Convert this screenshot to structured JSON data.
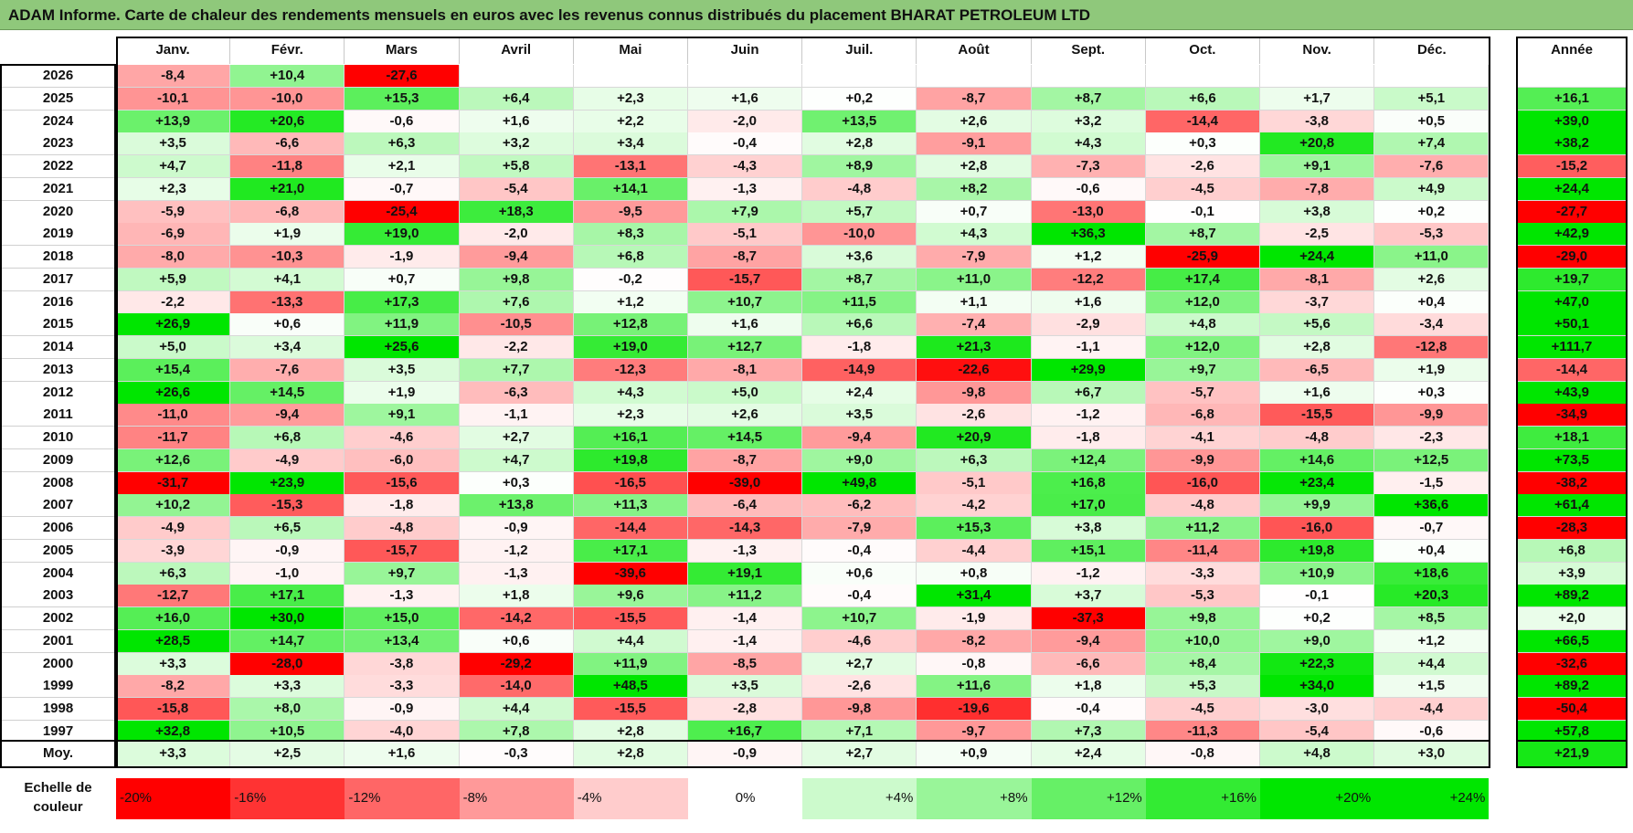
{
  "title": "ADAM Informe. Carte de chaleur des rendements mensuels en euros avec les revenus connus distribués du placement BHARAT PETROLEUM LTD",
  "chart_data": {
    "type": "heatmap",
    "title": "ADAM Informe. Carte de chaleur des rendements mensuels en euros avec les revenus connus distribués du placement BHARAT PETROLEUM LTD",
    "columns": [
      "Janv.",
      "Févr.",
      "Mars",
      "Avril",
      "Mai",
      "Juin",
      "Juil.",
      "Août",
      "Sept.",
      "Oct.",
      "Nov.",
      "Déc."
    ],
    "year_header": "Année",
    "rows": [
      {
        "year": "2026",
        "values": [
          -8.4,
          10.4,
          -27.6,
          null,
          null,
          null,
          null,
          null,
          null,
          null,
          null,
          null
        ],
        "annual": null
      },
      {
        "year": "2025",
        "values": [
          -10.1,
          -10.0,
          15.3,
          6.4,
          2.3,
          1.6,
          0.2,
          -8.7,
          8.7,
          6.6,
          1.7,
          5.1
        ],
        "annual": 16.1
      },
      {
        "year": "2024",
        "values": [
          13.9,
          20.6,
          -0.6,
          1.6,
          2.2,
          -2.0,
          13.5,
          2.6,
          3.2,
          -14.4,
          -3.8,
          0.5
        ],
        "annual": 39.0
      },
      {
        "year": "2023",
        "values": [
          3.5,
          -6.6,
          6.3,
          3.2,
          3.4,
          -0.4,
          2.8,
          -9.1,
          4.3,
          0.3,
          20.8,
          7.4
        ],
        "annual": 38.2
      },
      {
        "year": "2022",
        "values": [
          4.7,
          -11.8,
          2.1,
          5.8,
          -13.1,
          -4.3,
          8.9,
          2.8,
          -7.3,
          -2.6,
          9.1,
          -7.6
        ],
        "annual": -15.2
      },
      {
        "year": "2021",
        "values": [
          2.3,
          21.0,
          -0.7,
          -5.4,
          14.1,
          -1.3,
          -4.8,
          8.2,
          -0.6,
          -4.5,
          -7.8,
          4.9
        ],
        "annual": 24.4
      },
      {
        "year": "2020",
        "values": [
          -5.9,
          -6.8,
          -25.4,
          18.3,
          -9.5,
          7.9,
          5.7,
          0.7,
          -13.0,
          -0.1,
          3.8,
          0.2
        ],
        "annual": -27.7
      },
      {
        "year": "2019",
        "values": [
          -6.9,
          1.9,
          19.0,
          -2.0,
          8.3,
          -5.1,
          -10.0,
          4.3,
          36.3,
          8.7,
          -2.5,
          -5.3
        ],
        "annual": 42.9
      },
      {
        "year": "2018",
        "values": [
          -8.0,
          -10.3,
          -1.9,
          -9.4,
          6.8,
          -8.7,
          3.6,
          -7.9,
          1.2,
          -25.9,
          24.4,
          11.0
        ],
        "annual": -29.0
      },
      {
        "year": "2017",
        "values": [
          5.9,
          4.1,
          0.7,
          9.8,
          -0.2,
          -15.7,
          8.7,
          11.0,
          -12.2,
          17.4,
          -8.1,
          2.6
        ],
        "annual": 19.7
      },
      {
        "year": "2016",
        "values": [
          -2.2,
          -13.3,
          17.3,
          7.6,
          1.2,
          10.7,
          11.5,
          1.1,
          1.6,
          12.0,
          -3.7,
          0.4
        ],
        "annual": 47.0
      },
      {
        "year": "2015",
        "values": [
          26.9,
          0.6,
          11.9,
          -10.5,
          12.8,
          1.6,
          6.6,
          -7.4,
          -2.9,
          4.8,
          5.6,
          -3.4
        ],
        "annual": 50.1
      },
      {
        "year": "2014",
        "values": [
          5.0,
          3.4,
          25.6,
          -2.2,
          19.0,
          12.7,
          -1.8,
          21.3,
          -1.1,
          12.0,
          2.8,
          -12.8
        ],
        "annual": 111.7
      },
      {
        "year": "2013",
        "values": [
          15.4,
          -7.6,
          3.5,
          7.7,
          -12.3,
          -8.1,
          -14.9,
          -22.6,
          29.9,
          9.7,
          -6.5,
          1.9
        ],
        "annual": -14.4
      },
      {
        "year": "2012",
        "values": [
          26.6,
          14.5,
          1.9,
          -6.3,
          4.3,
          5.0,
          2.4,
          -9.8,
          6.7,
          -5.7,
          1.6,
          0.3
        ],
        "annual": 43.9
      },
      {
        "year": "2011",
        "values": [
          -11.0,
          -9.4,
          9.1,
          -1.1,
          2.3,
          2.6,
          3.5,
          -2.6,
          -1.2,
          -6.8,
          -15.5,
          -9.9
        ],
        "annual": -34.9
      },
      {
        "year": "2010",
        "values": [
          -11.7,
          6.8,
          -4.6,
          2.7,
          16.1,
          14.5,
          -9.4,
          20.9,
          -1.8,
          -4.1,
          -4.8,
          -2.3
        ],
        "annual": 18.1
      },
      {
        "year": "2009",
        "values": [
          12.6,
          -4.9,
          -6.0,
          4.7,
          19.8,
          -8.7,
          9.0,
          6.3,
          12.4,
          -9.9,
          14.6,
          12.5
        ],
        "annual": 73.5
      },
      {
        "year": "2008",
        "values": [
          -31.7,
          23.9,
          -15.6,
          0.3,
          -16.5,
          -39.0,
          49.8,
          -5.1,
          16.8,
          -16.0,
          23.4,
          -1.5
        ],
        "annual": -38.2
      },
      {
        "year": "2007",
        "values": [
          10.2,
          -15.3,
          -1.8,
          13.8,
          11.3,
          -6.4,
          -6.2,
          -4.2,
          17.0,
          -4.8,
          9.9,
          36.6
        ],
        "annual": 61.4
      },
      {
        "year": "2006",
        "values": [
          -4.9,
          6.5,
          -4.8,
          -0.9,
          -14.4,
          -14.3,
          -7.9,
          15.3,
          3.8,
          11.2,
          -16.0,
          -0.7
        ],
        "annual": -28.3
      },
      {
        "year": "2005",
        "values": [
          -3.9,
          -0.9,
          -15.7,
          -1.2,
          17.1,
          -1.3,
          -0.4,
          -4.4,
          15.1,
          -11.4,
          19.8,
          0.4
        ],
        "annual": 6.8
      },
      {
        "year": "2004",
        "values": [
          6.3,
          -1.0,
          9.7,
          -1.3,
          -39.6,
          19.1,
          0.6,
          0.8,
          -1.2,
          -3.3,
          10.9,
          18.6
        ],
        "annual": 3.9
      },
      {
        "year": "2003",
        "values": [
          -12.7,
          17.1,
          -1.3,
          1.8,
          9.6,
          11.2,
          -0.4,
          31.4,
          3.7,
          -5.3,
          -0.1,
          20.3
        ],
        "annual": 89.2
      },
      {
        "year": "2002",
        "values": [
          16.0,
          30.0,
          15.0,
          -14.2,
          -15.5,
          -1.4,
          10.7,
          -1.9,
          -37.3,
          9.8,
          0.2,
          8.5
        ],
        "annual": 2.0
      },
      {
        "year": "2001",
        "values": [
          28.5,
          14.7,
          13.4,
          0.6,
          4.4,
          -1.4,
          -4.6,
          -8.2,
          -9.4,
          10.0,
          9.0,
          1.2
        ],
        "annual": 66.5
      },
      {
        "year": "2000",
        "values": [
          3.3,
          -28.0,
          -3.8,
          -29.2,
          11.9,
          -8.5,
          2.7,
          -0.8,
          -6.6,
          8.4,
          22.3,
          4.4
        ],
        "annual": -32.6
      },
      {
        "year": "1999",
        "values": [
          -8.2,
          3.3,
          -3.3,
          -14.0,
          48.5,
          3.5,
          -2.6,
          11.6,
          1.8,
          5.3,
          34.0,
          1.5
        ],
        "annual": 89.2
      },
      {
        "year": "1998",
        "values": [
          -15.8,
          8.0,
          -0.9,
          4.4,
          -15.5,
          -2.8,
          -9.8,
          -19.6,
          -0.4,
          -4.5,
          -3.0,
          -4.4
        ],
        "annual": -50.4
      },
      {
        "year": "1997",
        "values": [
          32.8,
          10.5,
          -4.0,
          7.8,
          2.8,
          16.7,
          7.1,
          -9.7,
          7.3,
          -11.3,
          -5.4,
          -0.6
        ],
        "annual": 57.8
      }
    ],
    "average": {
      "label": "Moy.",
      "values": [
        3.3,
        2.5,
        1.6,
        -0.3,
        2.8,
        -0.9,
        2.7,
        0.9,
        2.4,
        -0.8,
        4.8,
        3.0
      ],
      "annual": 21.9
    },
    "scale": {
      "label": "Echelle de couleur",
      "stops": [
        -20,
        -16,
        -12,
        -8,
        -4,
        0,
        4,
        8,
        12,
        16,
        20,
        24
      ],
      "labels": [
        "-20%",
        "-16%",
        "-12%",
        "-8%",
        "-4%",
        "0%",
        "+4%",
        "+8%",
        "+12%",
        "+16%",
        "+20%",
        "+24%"
      ]
    },
    "colors": {
      "negative": "#ff0000",
      "neutral": "#ffffff",
      "positive": "#00e600"
    }
  }
}
